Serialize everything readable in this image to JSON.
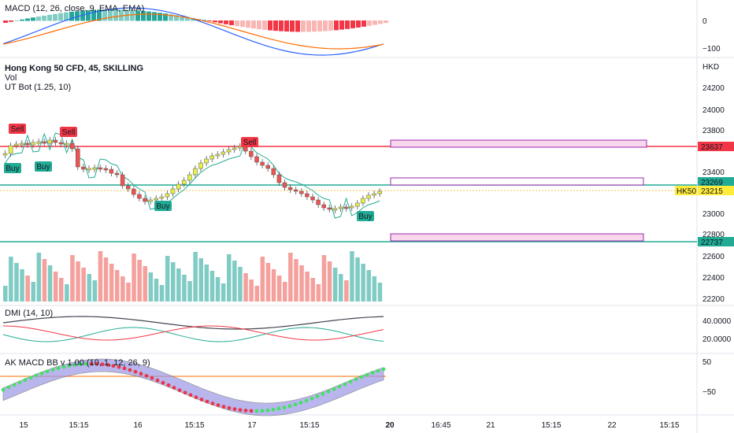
{
  "chart_data": {
    "type": "candlestick",
    "colors": {
      "up": "#26a69a",
      "down": "#ef5350",
      "candle_up": "#e8f04a",
      "candle_down": "#ef5350",
      "vol_up": "#80cbc4",
      "vol_down": "#f4a09c",
      "accent_red": "#f23645",
      "accent_green": "#22ab94",
      "macd_line": "#2962ff",
      "signal_line": "#ff6d00",
      "dmi_adx": "#434651",
      "band_fill": "#9c98e6"
    },
    "panes": {
      "macd": {
        "title": "MACD (12, 26, close, 9, EMA, EMA)",
        "ticks": [
          "0",
          "−100"
        ]
      },
      "main": {
        "title": "Hong Kong 50 CFD, 45, SKILLING",
        "sub1": "Vol",
        "sub2": "UT Bot (1.25, 10)",
        "currency": "HKD",
        "ticks": [
          "24200",
          "24000",
          "23800",
          "23400",
          "23000",
          "22800",
          "22600",
          "22400",
          "22200"
        ],
        "price_labels": [
          {
            "value": "23637",
            "color": "#f23645"
          },
          {
            "value": "23269",
            "color": "#22ab94"
          },
          {
            "value": "23215",
            "color": "#ffeb3b",
            "prefix": "HK50"
          },
          {
            "value": "22737",
            "color": "#22ab94"
          }
        ],
        "signals": [
          {
            "text": "Sell",
            "type": "sell"
          },
          {
            "text": "Buy",
            "type": "buy"
          },
          {
            "text": "Buy",
            "type": "buy"
          },
          {
            "text": "Sell",
            "type": "sell"
          },
          {
            "text": "Sell",
            "type": "sell"
          },
          {
            "text": "Buy",
            "type": "buy"
          },
          {
            "text": "Buy",
            "type": "buy"
          }
        ],
        "levels": [
          23637,
          23269,
          22737
        ]
      },
      "dmi": {
        "title": "DMI (14, 10)",
        "ticks": [
          "40.0000",
          "20.0000"
        ]
      },
      "akmacd": {
        "title": "AK MACD BB v 1.00 (10, 1, 12, 26, 9)",
        "ticks": [
          "50",
          "−50"
        ]
      }
    },
    "x_ticks": [
      "15",
      "15:15",
      "16",
      "15:15",
      "17",
      "15:15",
      "20",
      "16:45",
      "21",
      "15:15",
      "22",
      "15:15"
    ]
  }
}
